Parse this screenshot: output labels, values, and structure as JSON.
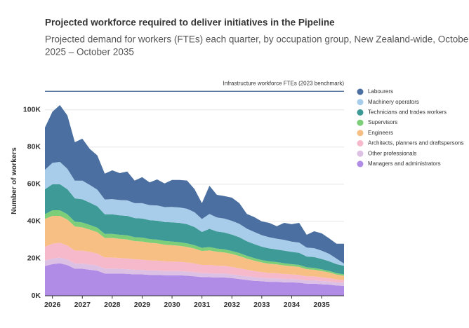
{
  "chart_data": {
    "type": "stacked_area",
    "title": "Projected workforce required to deliver initiatives in the Pipeline",
    "subtitle": [
      "Projected demand for workers (FTEs) each quarter, by occupation group, New Zealand-wide, October",
      "2025 – October 2035"
    ],
    "y_label": "Number of workers",
    "benchmark": {
      "label": "Infrastructure workforce FTEs (2023 benchmark)",
      "value": 110000,
      "color": "#3b5f8a"
    },
    "x": [
      2025.75,
      2026,
      2026.25,
      2026.5,
      2026.75,
      2027,
      2027.25,
      2027.5,
      2027.75,
      2028,
      2028.25,
      2028.5,
      2028.75,
      2029,
      2029.25,
      2029.5,
      2029.75,
      2030,
      2030.25,
      2030.5,
      2030.75,
      2031,
      2031.25,
      2031.5,
      2031.75,
      2032,
      2032.25,
      2032.5,
      2032.75,
      2033,
      2033.25,
      2033.5,
      2033.75,
      2034,
      2034.25,
      2034.5,
      2034.75,
      2035,
      2035.25,
      2035.5,
      2035.75
    ],
    "xlim": [
      2025.75,
      2035.75
    ],
    "xticks": [
      2026,
      2027,
      2028,
      2029,
      2030,
      2031,
      2032,
      2033,
      2034,
      2035
    ],
    "ylim": [
      0,
      115000
    ],
    "yticks": [
      {
        "value": 0,
        "label": "0K"
      },
      {
        "value": 20000,
        "label": "20K"
      },
      {
        "value": 40000,
        "label": "40K"
      },
      {
        "value": 60000,
        "label": "60K"
      },
      {
        "value": 80000,
        "label": "80K"
      },
      {
        "value": 100000,
        "label": "100K"
      }
    ],
    "grid": true,
    "legend": "right",
    "series": [
      {
        "name": "Labourers",
        "color": "#4a6fa0",
        "values": [
          22700,
          27500,
          30600,
          28700,
          20700,
          22600,
          19400,
          18400,
          13900,
          15500,
          14500,
          15500,
          12200,
          14000,
          12300,
          14000,
          12700,
          14500,
          14800,
          15200,
          12400,
          8500,
          15200,
          12200,
          12100,
          12500,
          11100,
          7900,
          8000,
          7400,
          7700,
          6700,
          9100,
          9400,
          10600,
          6900,
          9100,
          9300,
          8300,
          8000,
          10700
        ]
      },
      {
        "name": "Machinery operators",
        "color": "#a7cdea",
        "values": [
          10500,
          11500,
          12000,
          11000,
          9500,
          10000,
          9500,
          9000,
          8000,
          8200,
          8200,
          8300,
          8000,
          8200,
          8000,
          8200,
          8000,
          8300,
          8300,
          8300,
          8000,
          7000,
          8000,
          7500,
          7500,
          7400,
          7200,
          6800,
          6500,
          6200,
          6000,
          5800,
          5800,
          5500,
          5500,
          4800,
          4800,
          4500,
          4000,
          3000,
          1200
        ]
      },
      {
        "name": "Technicians and trades workers",
        "color": "#3e9a97",
        "values": [
          13400,
          14000,
          14000,
          13500,
          12500,
          12500,
          12000,
          11500,
          10500,
          10500,
          10500,
          10500,
          10300,
          10300,
          10200,
          10200,
          10200,
          10300,
          10400,
          10300,
          9800,
          8500,
          9800,
          9200,
          9000,
          8800,
          8500,
          7800,
          7500,
          7200,
          7000,
          6800,
          6800,
          6600,
          6500,
          5800,
          5800,
          5600,
          5200,
          4800,
          4600
        ]
      },
      {
        "name": "Supervisors",
        "color": "#7ccf78",
        "values": [
          2500,
          3000,
          3000,
          2800,
          2600,
          2600,
          2500,
          2400,
          2200,
          2200,
          2200,
          2200,
          2100,
          2100,
          2000,
          2000,
          2000,
          2000,
          1900,
          1900,
          1800,
          1700,
          1800,
          1700,
          1700,
          1600,
          1600,
          1500,
          1400,
          1300,
          1300,
          1200,
          1200,
          1100,
          1100,
          1000,
          1000,
          900,
          900,
          800,
          700
        ]
      },
      {
        "name": "Engineers",
        "color": "#f7bf84",
        "values": [
          15000,
          15000,
          14500,
          14000,
          13000,
          12500,
          12000,
          11500,
          10500,
          10500,
          10300,
          10200,
          9800,
          9800,
          9500,
          9300,
          9000,
          8800,
          8600,
          8400,
          8000,
          7500,
          7800,
          7500,
          7200,
          7000,
          6600,
          6000,
          5600,
          5200,
          5000,
          4800,
          4600,
          4400,
          4300,
          3800,
          3600,
          3400,
          3000,
          2600,
          2300
        ]
      },
      {
        "name": "Architects, planners and draftspersons",
        "color": "#f6b8cb",
        "values": [
          7400,
          8000,
          8000,
          7500,
          7000,
          7000,
          6800,
          6500,
          6000,
          6000,
          5800,
          5800,
          5600,
          5500,
          5400,
          5300,
          5200,
          5100,
          5000,
          4900,
          4700,
          4400,
          4500,
          4300,
          4200,
          4000,
          3800,
          3500,
          3300,
          3000,
          2800,
          2700,
          2600,
          2500,
          2400,
          2200,
          2100,
          2000,
          1800,
          1600,
          1500
        ]
      },
      {
        "name": "Other professionals",
        "color": "#dcc1e4",
        "values": [
          3000,
          3000,
          3000,
          3000,
          2800,
          2800,
          2800,
          2700,
          2600,
          2600,
          2500,
          2500,
          2500,
          2400,
          2400,
          2400,
          2300,
          2300,
          2300,
          2200,
          2200,
          2200,
          2100,
          2100,
          2100,
          2000,
          2000,
          2000,
          2000,
          1900,
          1900,
          1900,
          1900,
          1800,
          1800,
          1800,
          1800,
          1700,
          1700,
          1700,
          1700
        ]
      },
      {
        "name": "Managers and administrators",
        "color": "#b08ce6",
        "values": [
          16000,
          17000,
          17500,
          16500,
          14500,
          14500,
          14000,
          13500,
          12000,
          12000,
          12000,
          11800,
          11500,
          11500,
          11200,
          11200,
          11000,
          11000,
          11000,
          10800,
          10500,
          10000,
          10000,
          9800,
          9800,
          9500,
          9000,
          8500,
          8000,
          7800,
          7500,
          7500,
          7200,
          7200,
          7000,
          6500,
          6500,
          6200,
          6000,
          5500,
          5300
        ]
      }
    ]
  }
}
